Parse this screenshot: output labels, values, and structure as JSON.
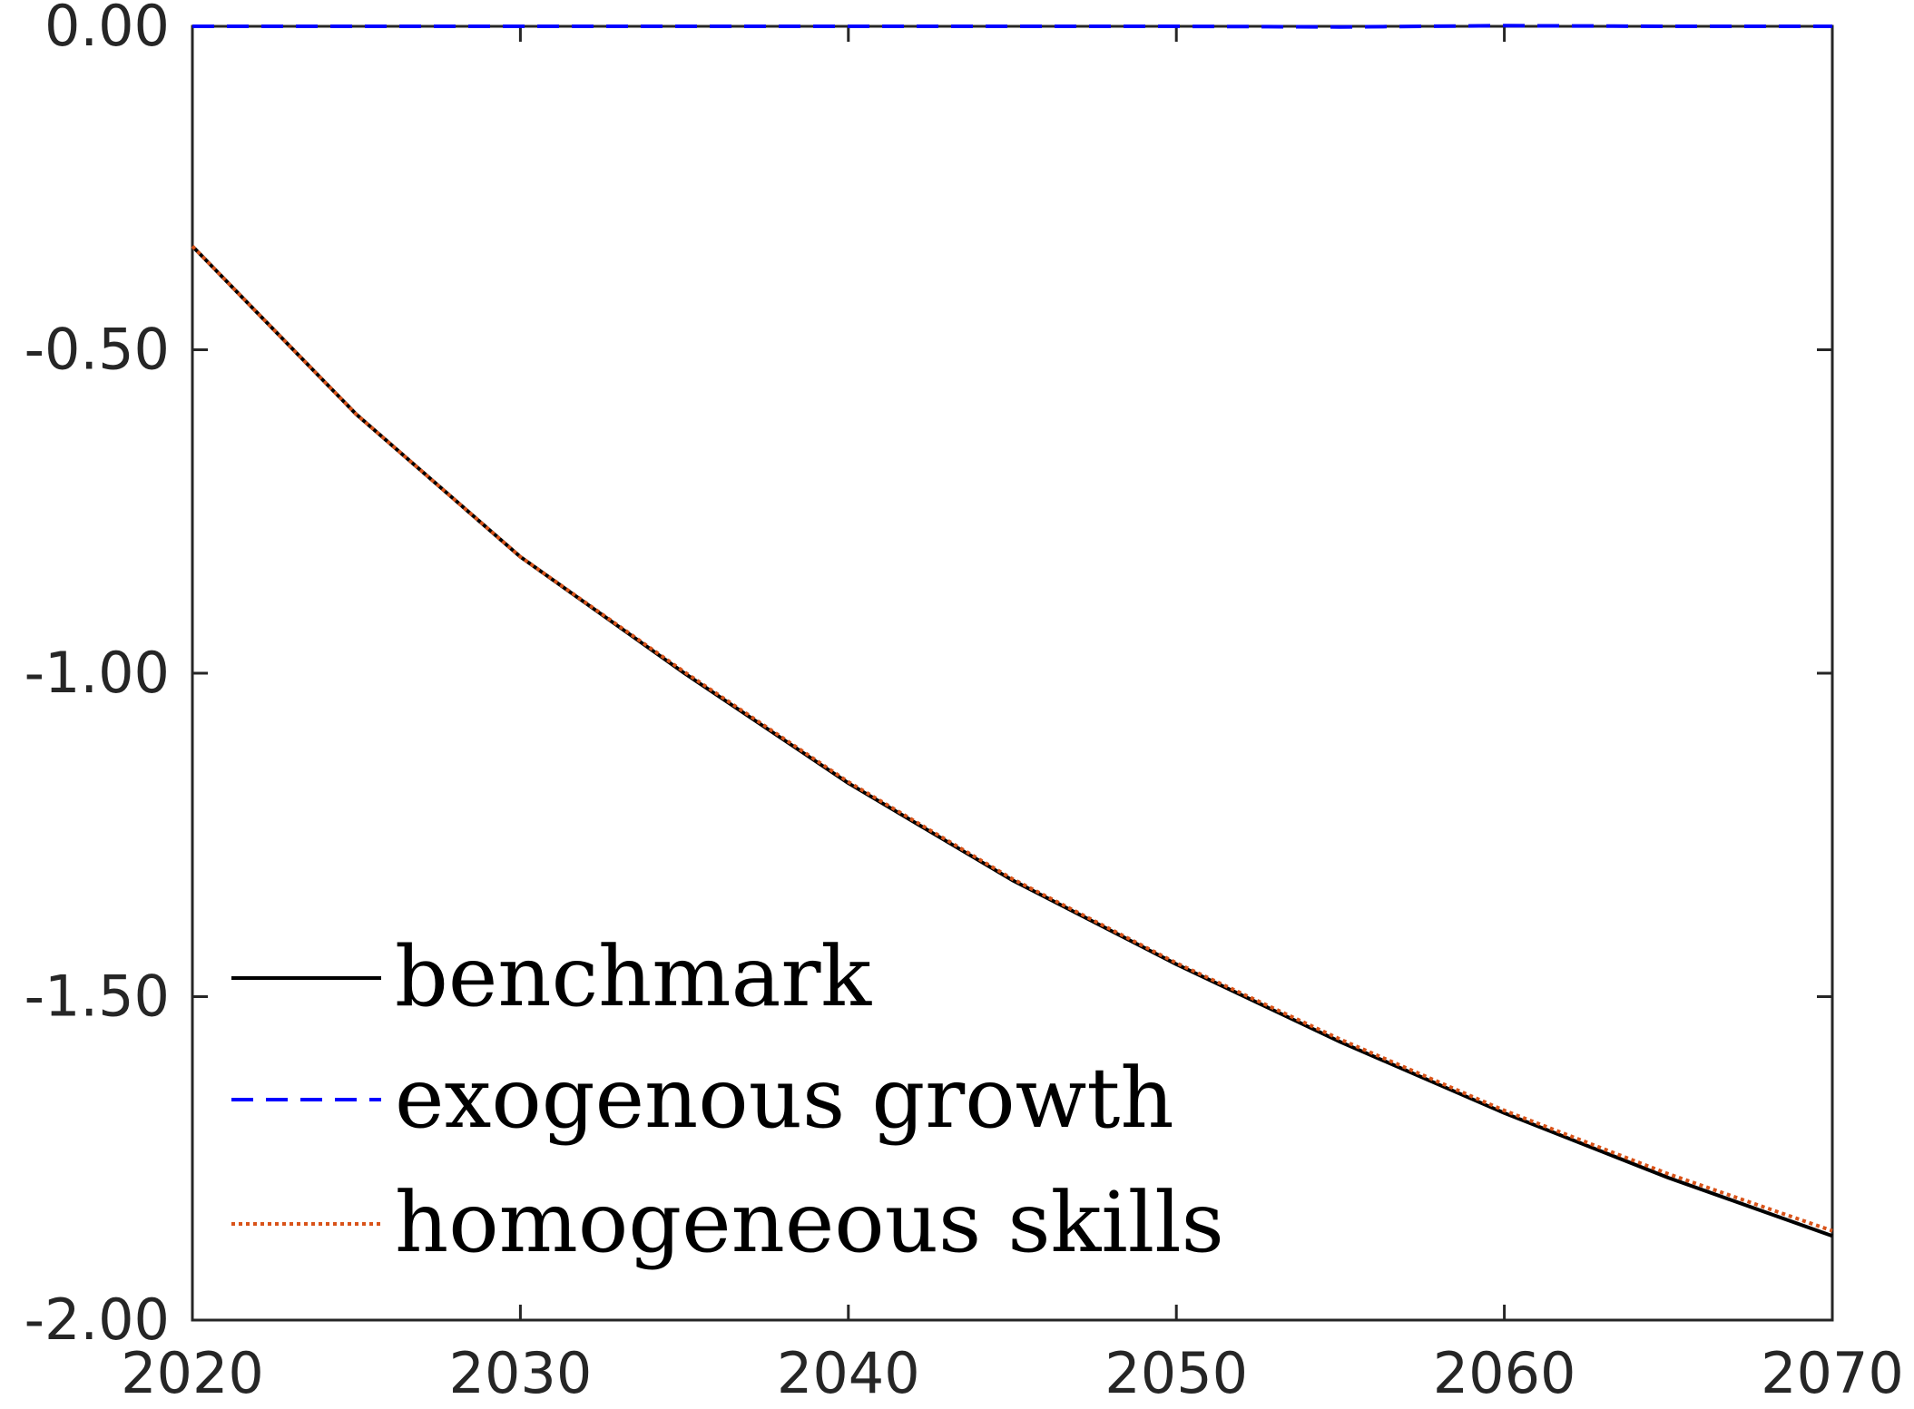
{
  "chart_data": {
    "type": "line",
    "title": "",
    "xlabel": "",
    "ylabel": "",
    "xlim": [
      2020,
      2070
    ],
    "ylim": [
      -2.0,
      0.0
    ],
    "x_ticks": [
      2020,
      2030,
      2040,
      2050,
      2060,
      2070
    ],
    "x_tick_labels": [
      "2020",
      "2030",
      "2040",
      "2050",
      "2060",
      "2070"
    ],
    "y_ticks": [
      0.0,
      -0.5,
      -1.0,
      -1.5,
      -2.0
    ],
    "y_tick_labels": [
      "0.00",
      "-0.50",
      "-1.00",
      "-1.50",
      "-2.00"
    ],
    "grid": false,
    "legend_position": "bottom-left",
    "x": [
      2020,
      2025,
      2030,
      2035,
      2040,
      2045,
      2050,
      2055,
      2060,
      2065,
      2070
    ],
    "series": [
      {
        "name": "benchmark",
        "color": "#000000",
        "style": "solid",
        "values": [
          -0.34,
          -0.6,
          -0.82,
          -1.0,
          -1.17,
          -1.32,
          -1.45,
          -1.57,
          -1.68,
          -1.78,
          -1.87
        ]
      },
      {
        "name": "exogenous growth",
        "color": "#0000ff",
        "style": "dashed",
        "values": [
          0.0,
          0.0,
          0.0,
          0.0,
          0.0,
          0.0,
          0.0,
          -0.001,
          0.001,
          0.0,
          0.0
        ]
      },
      {
        "name": "homogeneous skills",
        "color": "#d95319",
        "style": "dotted",
        "values": [
          -0.34,
          -0.6,
          -0.82,
          -0.998,
          -1.168,
          -1.318,
          -1.448,
          -1.566,
          -1.676,
          -1.774,
          -1.862
        ]
      }
    ]
  }
}
